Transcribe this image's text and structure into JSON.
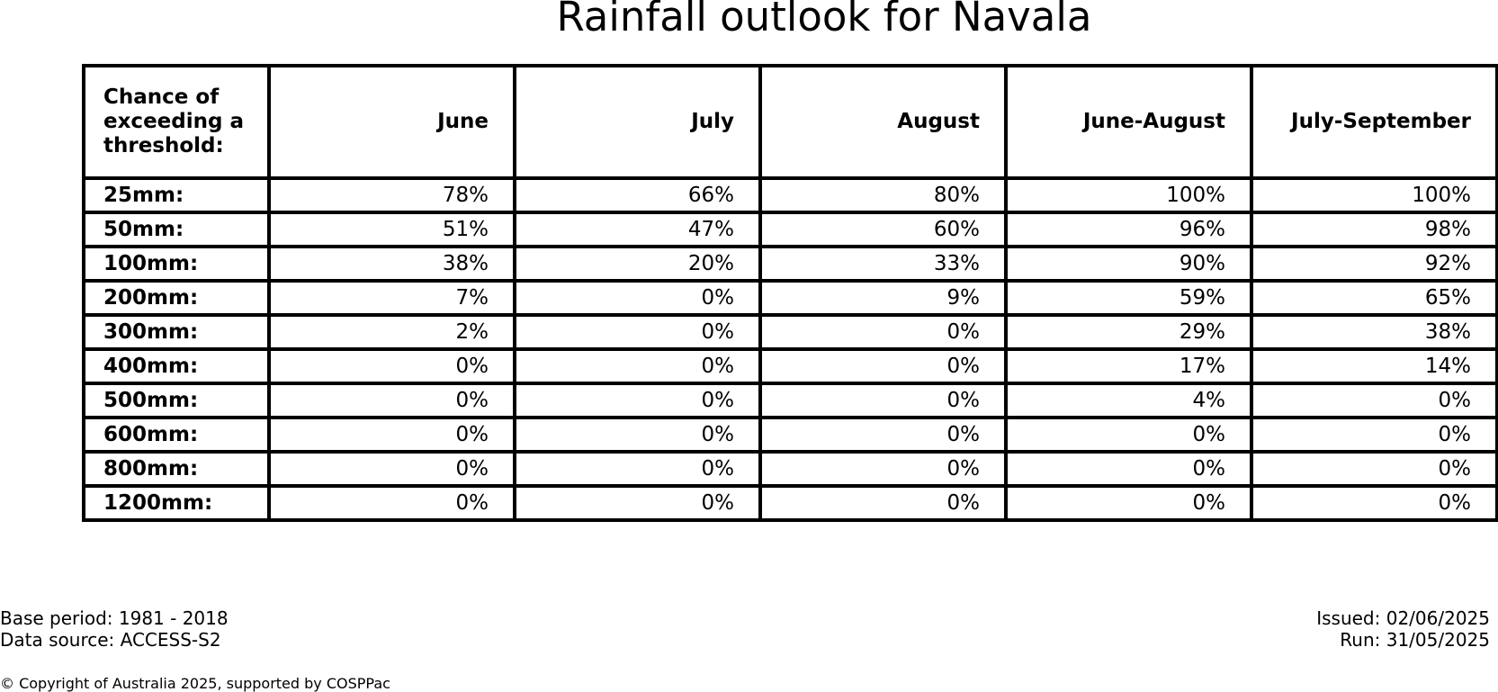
{
  "chart_data": {
    "type": "table",
    "title": "Rainfall outlook for Navala",
    "corner_header": "Chance of exceeding a threshold:",
    "columns": [
      "June",
      "July",
      "August",
      "June-August",
      "July-September"
    ],
    "rows": [
      {
        "label": "25mm:",
        "values": [
          "78%",
          "66%",
          "80%",
          "100%",
          "100%"
        ]
      },
      {
        "label": "50mm:",
        "values": [
          "51%",
          "47%",
          "60%",
          "96%",
          "98%"
        ]
      },
      {
        "label": "100mm:",
        "values": [
          "38%",
          "20%",
          "33%",
          "90%",
          "92%"
        ]
      },
      {
        "label": "200mm:",
        "values": [
          "7%",
          "0%",
          "9%",
          "59%",
          "65%"
        ]
      },
      {
        "label": "300mm:",
        "values": [
          "2%",
          "0%",
          "0%",
          "29%",
          "38%"
        ]
      },
      {
        "label": "400mm:",
        "values": [
          "0%",
          "0%",
          "0%",
          "17%",
          "14%"
        ]
      },
      {
        "label": "500mm:",
        "values": [
          "0%",
          "0%",
          "0%",
          "4%",
          "0%"
        ]
      },
      {
        "label": "600mm:",
        "values": [
          "0%",
          "0%",
          "0%",
          "0%",
          "0%"
        ]
      },
      {
        "label": "800mm:",
        "values": [
          "0%",
          "0%",
          "0%",
          "0%",
          "0%"
        ]
      },
      {
        "label": "1200mm:",
        "values": [
          "0%",
          "0%",
          "0%",
          "0%",
          "0%"
        ]
      }
    ]
  },
  "footer": {
    "base_period": "Base period: 1981 - 2018",
    "data_source": "Data source: ACCESS-S2",
    "issued": "Issued: 02/06/2025",
    "run": "Run: 31/05/2025",
    "copyright": "© Copyright of Australia 2025, supported by COSPPac"
  }
}
